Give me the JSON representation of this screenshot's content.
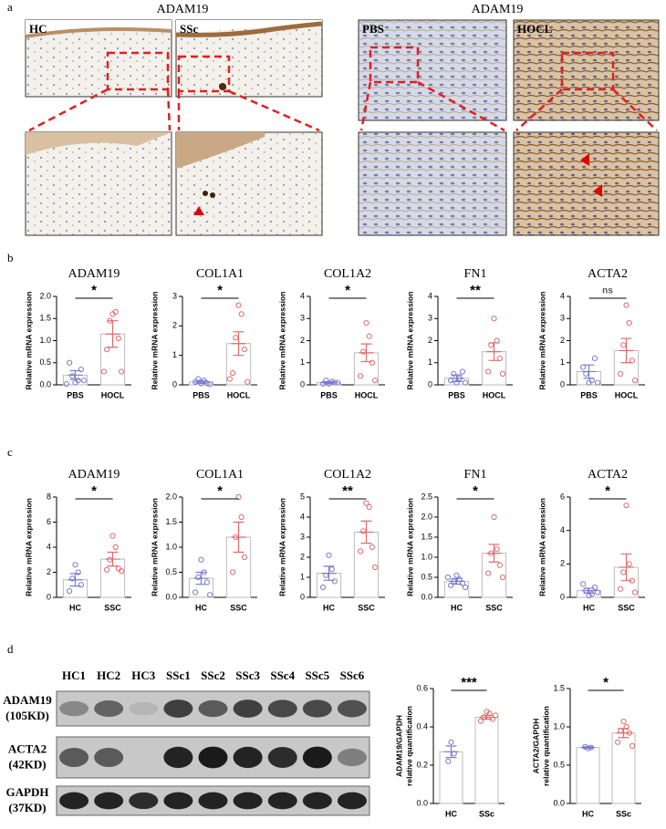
{
  "panels": {
    "a": "a",
    "b": "b",
    "c": "c",
    "d": "d"
  },
  "micrographs": {
    "left_title": "ADAM19",
    "right_title": "ADAM19",
    "labels": [
      "HC",
      "SSc",
      "PBS",
      "HOCL"
    ]
  },
  "blot": {
    "lanes": [
      "HC1",
      "HC2",
      "HC3",
      "SSc1",
      "SSc2",
      "SSc3",
      "SSc4",
      "SSc5",
      "SSc6"
    ],
    "rows": [
      {
        "name": "ADAM19",
        "size": "(105KD)"
      },
      {
        "name": "ACTA2",
        "size": "(42KD)"
      },
      {
        "name": "GAPDH",
        "size": "(37KD)"
      }
    ]
  },
  "chart_data": [
    {
      "type": "bar",
      "title": "ADAM19",
      "ylabel": [
        "Relative mRNA expression"
      ],
      "categories": [
        "PBS",
        "HOCL"
      ],
      "values": [
        0.22,
        1.15
      ],
      "errors": [
        0.1,
        0.3
      ],
      "points": [
        [
          0.05,
          0.1,
          0.2,
          0.35,
          0.5,
          0.1,
          0.02
        ],
        [
          1.6,
          1.65,
          1.45,
          1.05,
          0.8,
          0.3,
          0.3
        ]
      ],
      "colors": [
        "#7b7bd1",
        "#e06b6b"
      ],
      "significance": "*",
      "ylim": [
        0,
        2
      ],
      "yticks": [
        {
          "value": 0,
          "label": "0.0"
        },
        0.5,
        {
          "value": 1,
          "label": "1.0"
        },
        1.5,
        {
          "value": 2,
          "label": "2.0"
        }
      ]
    },
    {
      "type": "bar",
      "title": "COL1A1",
      "ylabel": [
        "Relative mRNA expression"
      ],
      "categories": [
        "PBS",
        "HOCL"
      ],
      "values": [
        0.1,
        1.4
      ],
      "errors": [
        0.05,
        0.4
      ],
      "points": [
        [
          0.05,
          0.15,
          0.2,
          0.05,
          0.1,
          0.02
        ],
        [
          2.7,
          2.4,
          1.6,
          1.2,
          0.4,
          0.1,
          0.2
        ]
      ],
      "colors": [
        "#7b7bd1",
        "#e06b6b"
      ],
      "significance": "*",
      "ylim": [
        0,
        3
      ],
      "yticks": [
        0,
        1,
        2,
        3
      ]
    },
    {
      "type": "bar",
      "title": "COL1A2",
      "ylabel": [
        "Relative mRNA expression"
      ],
      "categories": [
        "PBS",
        "HOCL"
      ],
      "values": [
        0.1,
        1.45
      ],
      "errors": [
        0.05,
        0.4
      ],
      "points": [
        [
          0.05,
          0.15,
          0.2,
          0.1,
          0.05,
          0.1
        ],
        [
          2.8,
          2.2,
          1.5,
          1.0,
          0.4,
          0.2
        ]
      ],
      "colors": [
        "#7b7bd1",
        "#e06b6b"
      ],
      "significance": "*",
      "ylim": [
        0,
        4
      ],
      "yticks": [
        0,
        1,
        2,
        3,
        4
      ]
    },
    {
      "type": "bar",
      "title": "FN1",
      "ylabel": [
        "Relative mRNA expression"
      ],
      "categories": [
        "PBS",
        "HOCL"
      ],
      "values": [
        0.3,
        1.5
      ],
      "errors": [
        0.15,
        0.4
      ],
      "points": [
        [
          0.1,
          0.3,
          0.5,
          0.6,
          0.2,
          0.1
        ],
        [
          3.0,
          2.0,
          1.8,
          1.2,
          0.6,
          0.5
        ]
      ],
      "colors": [
        "#7b7bd1",
        "#e06b6b"
      ],
      "significance": "**",
      "ylim": [
        0,
        4
      ],
      "yticks": [
        0,
        1,
        2,
        3,
        4
      ]
    },
    {
      "type": "bar",
      "title": "ACTA2",
      "ylabel": [
        "Relative mRNA expression"
      ],
      "categories": [
        "PBS",
        "HOCL"
      ],
      "values": [
        0.6,
        1.55
      ],
      "errors": [
        0.3,
        0.55
      ],
      "points": [
        [
          0.1,
          0.2,
          0.5,
          1.2,
          0.8,
          0.1
        ],
        [
          3.6,
          2.8,
          1.8,
          1.1,
          0.5,
          0.2
        ]
      ],
      "colors": [
        "#7b7bd1",
        "#e06b6b"
      ],
      "significance": "ns",
      "ylim": [
        0,
        4
      ],
      "yticks": [
        0,
        1,
        2,
        3,
        4
      ]
    },
    {
      "type": "bar",
      "title": "ADAM19",
      "ylabel": [
        "Relative mRNA expression"
      ],
      "categories": [
        "HC",
        "SSC"
      ],
      "values": [
        1.4,
        3.05
      ],
      "errors": [
        0.5,
        0.55
      ],
      "points": [
        [
          2.6,
          2.0,
          1.5,
          1.0,
          0.5
        ],
        [
          4.9,
          4.0,
          3.0,
          2.3,
          2.2,
          2.1
        ]
      ],
      "colors": [
        "#7b7bd1",
        "#e06b6b"
      ],
      "significance": "*",
      "ylim": [
        0,
        8
      ],
      "yticks": [
        0,
        2,
        4,
        6,
        8
      ]
    },
    {
      "type": "bar",
      "title": "COL1A1",
      "ylabel": [
        "Relative mRNA expression"
      ],
      "categories": [
        "HC",
        "SSC"
      ],
      "values": [
        0.38,
        1.2
      ],
      "errors": [
        0.12,
        0.3
      ],
      "points": [
        [
          0.75,
          0.5,
          0.4,
          0.3,
          0.1,
          0.05
        ],
        [
          2.0,
          1.6,
          1.2,
          0.8,
          0.5
        ]
      ],
      "colors": [
        "#7b7bd1",
        "#e06b6b"
      ],
      "significance": "*",
      "ylim": [
        0,
        2
      ],
      "yticks": [
        {
          "value": 0,
          "label": "0.0"
        },
        0.5,
        {
          "value": 1,
          "label": "1.0"
        },
        1.5,
        {
          "value": 2,
          "label": "2.0"
        }
      ]
    },
    {
      "type": "bar",
      "title": "COL1A2",
      "ylabel": [
        "Relative mRNA expression"
      ],
      "categories": [
        "HC",
        "SSC"
      ],
      "values": [
        1.2,
        3.25
      ],
      "errors": [
        0.35,
        0.55
      ],
      "points": [
        [
          2.1,
          1.4,
          1.1,
          0.8,
          0.5
        ],
        [
          4.7,
          4.5,
          3.3,
          2.5,
          2.3,
          1.5
        ]
      ],
      "colors": [
        "#7b7bd1",
        "#e06b6b"
      ],
      "significance": "**",
      "ylim": [
        0,
        5
      ],
      "yticks": [
        0,
        1,
        2,
        3,
        4,
        5
      ]
    },
    {
      "type": "bar",
      "title": "FN1",
      "ylabel": [
        "Relative mRNA expression"
      ],
      "categories": [
        "HC",
        "SSC"
      ],
      "values": [
        0.4,
        1.1
      ],
      "errors": [
        0.07,
        0.22
      ],
      "points": [
        [
          0.55,
          0.45,
          0.4,
          0.35,
          0.3,
          0.25,
          0.5
        ],
        [
          2.0,
          1.2,
          1.1,
          0.8,
          0.6,
          0.5
        ]
      ],
      "colors": [
        "#7b7bd1",
        "#e06b6b"
      ],
      "significance": "*",
      "ylim": [
        0,
        2.5
      ],
      "yticks": [
        {
          "value": 0,
          "label": "0.0"
        },
        0.5,
        {
          "value": 1,
          "label": "1.0"
        },
        1.5,
        {
          "value": 2,
          "label": "2.0"
        },
        2.5
      ]
    },
    {
      "type": "bar",
      "title": "ACTA2",
      "ylabel": [
        "Relative mRNA expression"
      ],
      "categories": [
        "HC",
        "SSC"
      ],
      "values": [
        0.4,
        1.8
      ],
      "errors": [
        0.15,
        0.8
      ],
      "points": [
        [
          0.1,
          0.2,
          0.4,
          0.6,
          0.8,
          0.3
        ],
        [
          5.5,
          2.0,
          1.5,
          1.0,
          0.5,
          0.3
        ]
      ],
      "colors": [
        "#7b7bd1",
        "#e06b6b"
      ],
      "significance": "*",
      "ylim": [
        0,
        6
      ],
      "yticks": [
        0,
        2,
        4,
        6
      ]
    },
    {
      "type": "bar",
      "ylabel": [
        "ADAM19/GAPDH",
        "relative quantification"
      ],
      "categories": [
        "HC",
        "SSc"
      ],
      "values": [
        0.27,
        0.45
      ],
      "errors": [
        0.03,
        0.01
      ],
      "points": [
        [
          0.32,
          0.26,
          0.22
        ],
        [
          0.48,
          0.47,
          0.45,
          0.44,
          0.43,
          0.46
        ]
      ],
      "colors": [
        "#7b7bd1",
        "#e06b6b"
      ],
      "significance": "***",
      "ylim": [
        0,
        0.6
      ],
      "yticks": [
        {
          "value": 0,
          "label": "0.0"
        },
        0.2,
        0.4,
        0.6
      ]
    },
    {
      "type": "bar",
      "ylabel": [
        "ACTA2/GAPDH",
        "relative quantification"
      ],
      "categories": [
        "HC",
        "SSc"
      ],
      "values": [
        0.73,
        0.92
      ],
      "errors": [
        0.01,
        0.06
      ],
      "points": [
        [
          0.72,
          0.73,
          0.74
        ],
        [
          1.07,
          1.0,
          0.95,
          0.92,
          0.8,
          0.75
        ]
      ],
      "colors": [
        "#7b7bd1",
        "#e06b6b"
      ],
      "significance": "*",
      "ylim": [
        0,
        1.5
      ],
      "yticks": [
        {
          "value": 0,
          "label": "0.0"
        },
        0.5,
        {
          "value": 1,
          "label": "1.0"
        },
        1.5
      ]
    }
  ]
}
